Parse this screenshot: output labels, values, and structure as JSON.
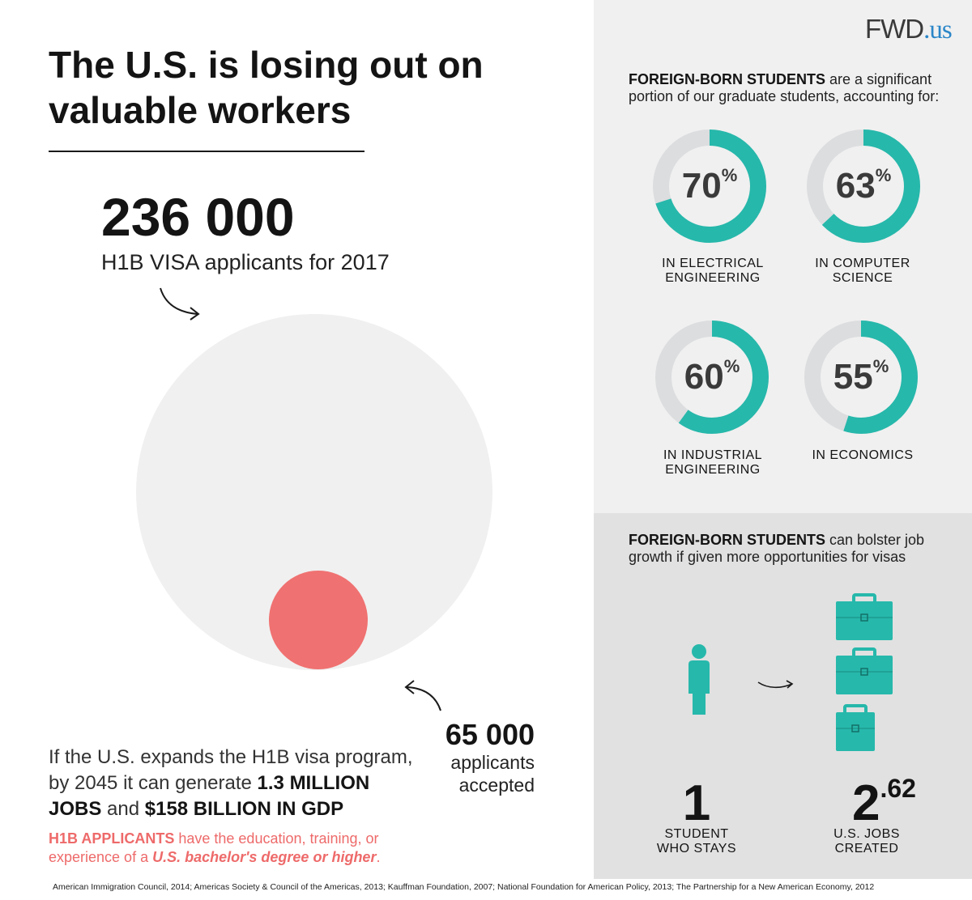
{
  "logo": {
    "name": "FWD",
    "tld": ".us"
  },
  "main": {
    "title": "The U.S. is losing out on valuable workers",
    "applicants_number": "236 000",
    "applicants_caption": "H1B VISA applicants for 2017",
    "accepted_number": "65 000",
    "accepted_caption": "applicants accepted",
    "expand_pre": "If the U.S. expands the H1B visa program, by 2045 it can generate ",
    "expand_jobs": "1.3 MILLION JOBS",
    "expand_and": " and ",
    "expand_gdp": "$158 BILLION IN GDP",
    "h1b_lead": "H1B APPLICANTS",
    "h1b_mid": " have the education, training, or experience of a ",
    "h1b_degree": "U.S. bachelor's degree or higher",
    "h1b_end": ".",
    "applicants_total": 236000,
    "applicants_accepted": 65000
  },
  "students": {
    "intro_bold": "FOREIGN-BORN STUDENTS",
    "intro_rest": " are a significant portion of our graduate students, accounting for:",
    "donuts": [
      {
        "value": 70,
        "number": "70",
        "percent": "%",
        "label": "IN ELECTRICAL ENGINEERING"
      },
      {
        "value": 63,
        "number": "63",
        "percent": "%",
        "label": "IN COMPUTER SCIENCE"
      },
      {
        "value": 60,
        "number": "60",
        "percent": "%",
        "label": "IN INDUSTRIAL ENGINEERING"
      },
      {
        "value": 55,
        "number": "55",
        "percent": "%",
        "label": "IN ECONOMICS"
      }
    ]
  },
  "jobs": {
    "intro_bold": "FOREIGN-BORN STUDENTS",
    "intro_rest": " can bolster job growth if given more opportunities for visas",
    "student_number": "1",
    "student_label": "STUDENT WHO STAYS",
    "jobs_whole": "2",
    "jobs_fraction": ".62",
    "jobs_label": "U.S. JOBS CREATED"
  },
  "sources": "American Immigration Council, 2014; Americas Society & Council of the Americas, 2013; Kauffman Foundation, 2007; National Foundation for American Policy, 2013; The Partnership for a New American Economy, 2012",
  "colors": {
    "teal": "#26b8ab",
    "donut_track": "#dcdddf",
    "coral": "#f07171",
    "light_circle": "#f0f0f0",
    "panel_top": "#f0f0f0",
    "panel_bottom": "#e1e1e1",
    "logo_accent": "#2a86c8"
  },
  "icons": {
    "person": "person-icon",
    "arrow": "curved-arrow-icon",
    "briefcase": "briefcase-icon"
  }
}
